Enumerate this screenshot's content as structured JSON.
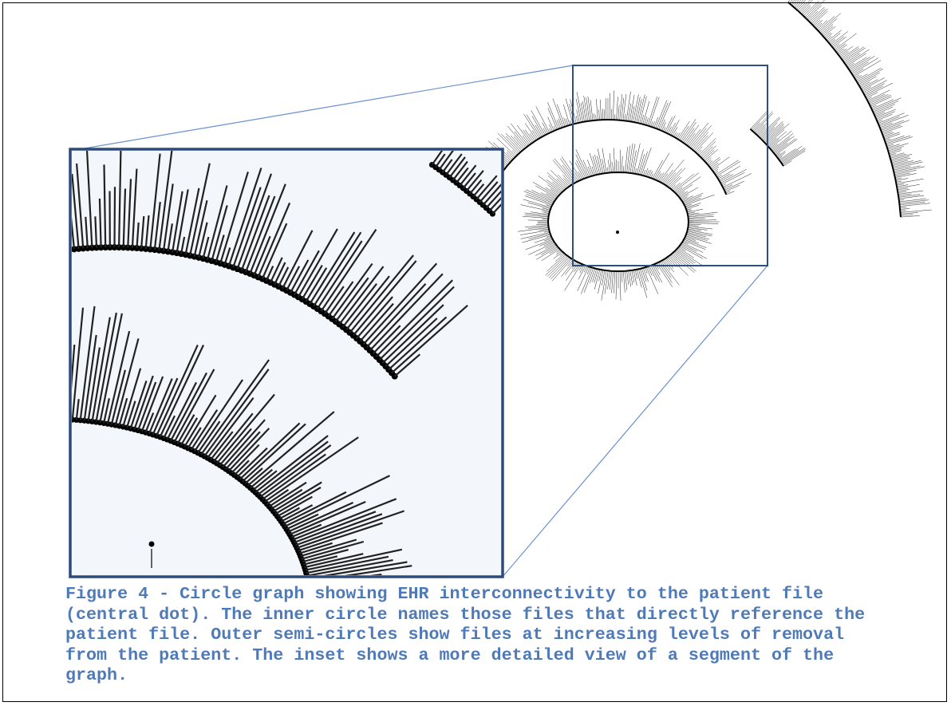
{
  "figure": {
    "caption_lines": [
      "Figure 4 - Circle graph showing EHR interconnectivity to the patient file",
      "(central dot). The inner circle names those files that directly reference the",
      "patient file. Outer semi-circles show files at increasing levels of removal",
      "from the patient. The inset shows a more detailed view of a segment of the",
      "graph."
    ]
  }
}
